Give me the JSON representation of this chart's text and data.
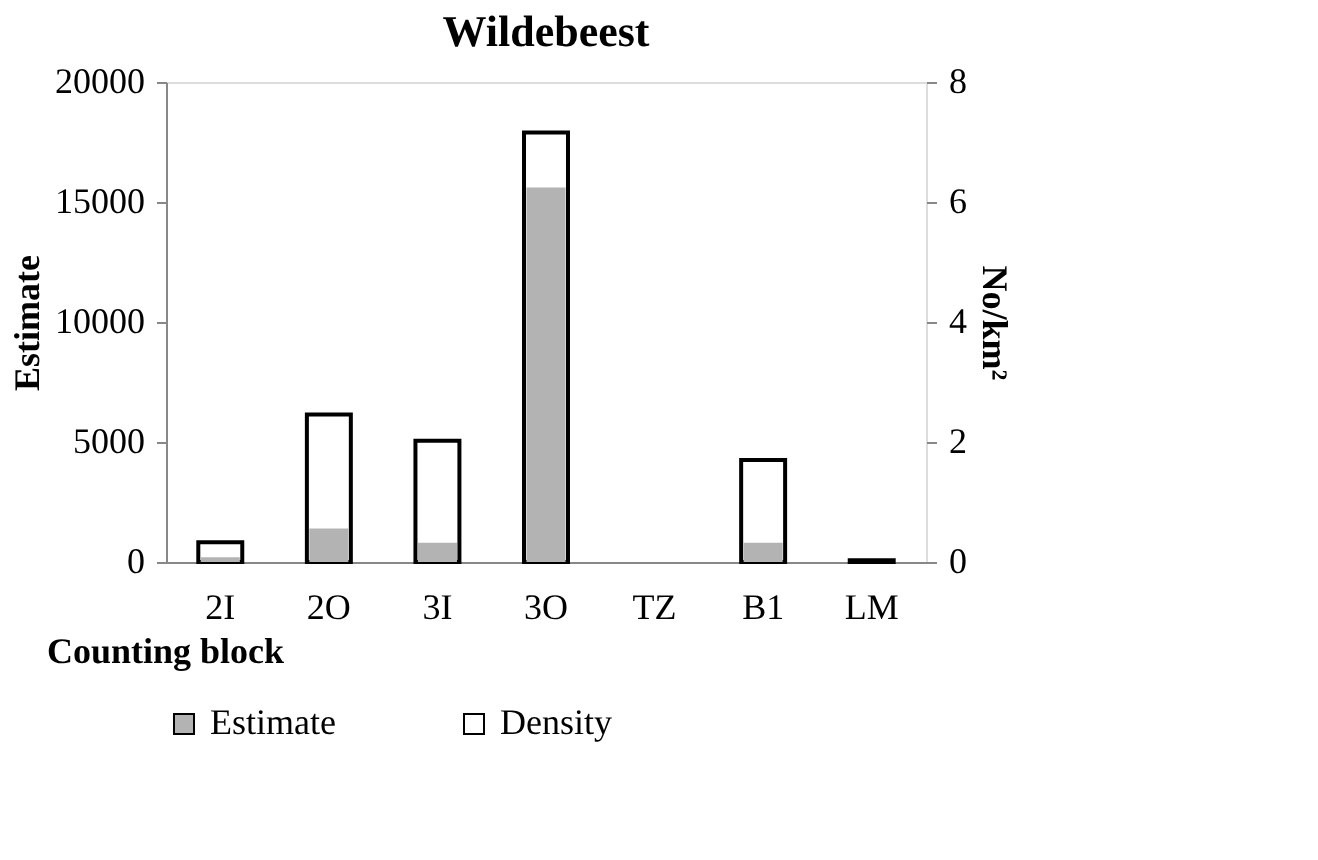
{
  "chart_data": {
    "type": "bar",
    "title": "Wildebeest",
    "xlabel": "Counting block",
    "ylabel": "Estimate",
    "y2label": "No/km²",
    "categories": [
      "2I",
      "2O",
      "3I",
      "3O",
      "TZ",
      "B1",
      "LM"
    ],
    "series": [
      {
        "name": "Estimate",
        "color": "#b3b3b3",
        "values": [
          200,
          1400,
          800,
          15600,
          0,
          800,
          null
        ]
      },
      {
        "name": "Density",
        "color": "#ffffff",
        "axis": "y2",
        "values": [
          0.33,
          2.46,
          2.02,
          7.16,
          0,
          1.7,
          0.03
        ]
      }
    ],
    "ylim": [
      0,
      20000
    ],
    "yticks": [
      0,
      5000,
      10000,
      15000,
      20000
    ],
    "y2lim": [
      0,
      8
    ],
    "y2ticks": [
      0,
      2,
      4,
      6,
      8
    ],
    "grid": false,
    "legend": "bottom"
  }
}
